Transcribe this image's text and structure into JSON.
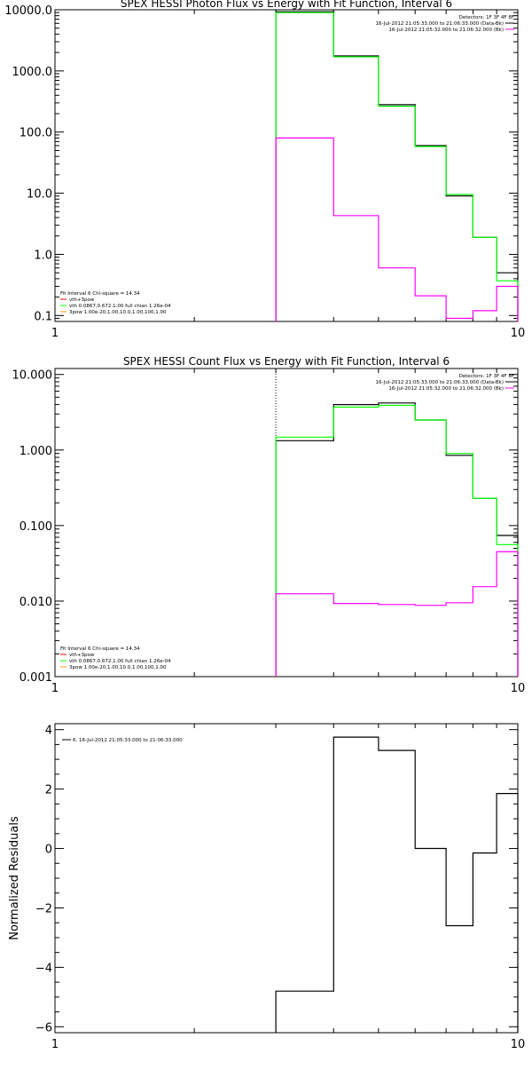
{
  "colors": {
    "black": "#000000",
    "magenta": "#ff00ff",
    "green": "#00ff00",
    "red": "#ff0000",
    "orange": "#ff9900"
  },
  "chart_data": [
    {
      "type": "line",
      "title": "SPEX HESSI Photon Flux vs Energy with Fit Function, Interval 6",
      "xscale": "log",
      "yscale": "log",
      "xlim": [
        1,
        10
      ],
      "ylim": [
        0.08,
        10000
      ],
      "xticks": [
        1,
        10
      ],
      "xtick_labels": [
        "1",
        "10"
      ],
      "yticks": [
        0.1,
        1,
        10,
        100,
        1000,
        10000
      ],
      "ytick_labels": [
        "0.1",
        "1.0",
        "10.0",
        "100.0",
        "1000.0",
        "10000.0"
      ],
      "vline": 3,
      "legend_right": {
        "header": "Detectors: 1F 3F 4F 8F",
        "rows": [
          {
            "text": "16-Jul-2012 21:05:33.000 to 21:06:33.000 (Data-Bk)",
            "color": "#000000"
          },
          {
            "text": "16-Jul-2012 21:05:32.000 to 21:06:32.000 (Bk)",
            "color": "#ff00ff"
          }
        ]
      },
      "legend_left": {
        "header": "Fit Interval 6   Chi-square = 14.34",
        "rows": [
          {
            "text": "vth+3pow",
            "color": "#ff0000"
          },
          {
            "text": "vth 0.0867,0.672,1.00  full chian 1.26e-04",
            "color": "#00ff00"
          },
          {
            "text": "3pow 1.00e-20,1.00,10.0,1.00,100,1.00",
            "color": "#ff9900"
          }
        ]
      },
      "series": [
        {
          "color": "#000000",
          "edges": [
            3,
            4,
            5,
            6,
            7,
            8,
            9,
            10
          ],
          "values": [
            9300,
            1760,
            280,
            60,
            9,
            1.9,
            0.5
          ]
        },
        {
          "color": "#00ff00",
          "edges": [
            3,
            4,
            5,
            6,
            7,
            8,
            9,
            10
          ],
          "values": [
            9000,
            1700,
            265,
            58,
            9.5,
            1.9,
            0.37
          ]
        },
        {
          "color": "#ff00ff",
          "edges": [
            3,
            4,
            5,
            6,
            7,
            8,
            9,
            10
          ],
          "values": [
            80,
            4.3,
            0.6,
            0.21,
            0.09,
            0.12,
            0.3
          ]
        }
      ]
    },
    {
      "type": "line",
      "title": "SPEX HESSI Count Flux vs Energy with Fit Function, Interval 6",
      "xscale": "log",
      "yscale": "log",
      "xlim": [
        1,
        10
      ],
      "ylim": [
        0.001,
        12
      ],
      "xticks": [
        1,
        10
      ],
      "xtick_labels": [
        "1",
        "10"
      ],
      "yticks": [
        0.001,
        0.01,
        0.1,
        1,
        10
      ],
      "ytick_labels": [
        "0.001",
        "0.010",
        "0.100",
        "1.000",
        "10.000"
      ],
      "vline": 3,
      "legend_right": {
        "header": "Detectors: 1F 3F 4F 8F",
        "rows": [
          {
            "text": "16-Jul-2012 21:05:33.000 to 21:06:33.000 (Data-Bk)",
            "color": "#000000"
          },
          {
            "text": "16-Jul-2012 21:05:32.000 to 21:06:32.000 (Bk)",
            "color": "#ff00ff"
          }
        ]
      },
      "legend_left": {
        "header": "Fit Interval 6   Chi-square = 14.34",
        "rows": [
          {
            "text": "vth+3pow",
            "color": "#ff0000"
          },
          {
            "text": "vth 0.0867,0.672,1.00  full chian 1.26e-04",
            "color": "#00ff00"
          },
          {
            "text": "3pow 1.00e-20,1.00,10.0,1.00,100,1.00",
            "color": "#ff9900"
          }
        ]
      },
      "series": [
        {
          "color": "#000000",
          "edges": [
            3,
            4,
            5,
            6,
            7,
            8,
            9,
            10
          ],
          "values": [
            1.33,
            4.0,
            4.2,
            2.5,
            0.85,
            0.23,
            0.074
          ]
        },
        {
          "color": "#00ff00",
          "edges": [
            3,
            4,
            5,
            6,
            7,
            8,
            9,
            10
          ],
          "values": [
            1.48,
            3.7,
            3.9,
            2.5,
            0.9,
            0.23,
            0.056
          ]
        },
        {
          "color": "#ff00ff",
          "edges": [
            3,
            4,
            5,
            6,
            7,
            8,
            9,
            10
          ],
          "values": [
            0.0125,
            0.0093,
            0.009,
            0.0088,
            0.0095,
            0.0155,
            0.045
          ]
        }
      ]
    },
    {
      "type": "line",
      "title": "",
      "xscale": "log",
      "yscale": "linear",
      "xlim": [
        1,
        10
      ],
      "ylim": [
        -6.2,
        4.2
      ],
      "ylabel": "Normalized Residuals",
      "xticks": [
        1,
        10
      ],
      "xtick_labels": [
        "1",
        "10"
      ],
      "yticks": [
        -6,
        -4,
        -2,
        0,
        2,
        4
      ],
      "ytick_labels": [
        "−6",
        "−4",
        "−2",
        "0",
        "2",
        "4"
      ],
      "legend_left_top": {
        "rows": [
          {
            "text": "6. 16-Jul-2012 21:05:33.000 to 21:06:33.000",
            "color": "#000000"
          }
        ]
      },
      "series": [
        {
          "color": "#000000",
          "edges": [
            3,
            4,
            5,
            6,
            7,
            8,
            9,
            10
          ],
          "values": [
            -4.8,
            3.75,
            3.3,
            0.0,
            -2.6,
            -0.15,
            1.85
          ]
        }
      ]
    }
  ]
}
